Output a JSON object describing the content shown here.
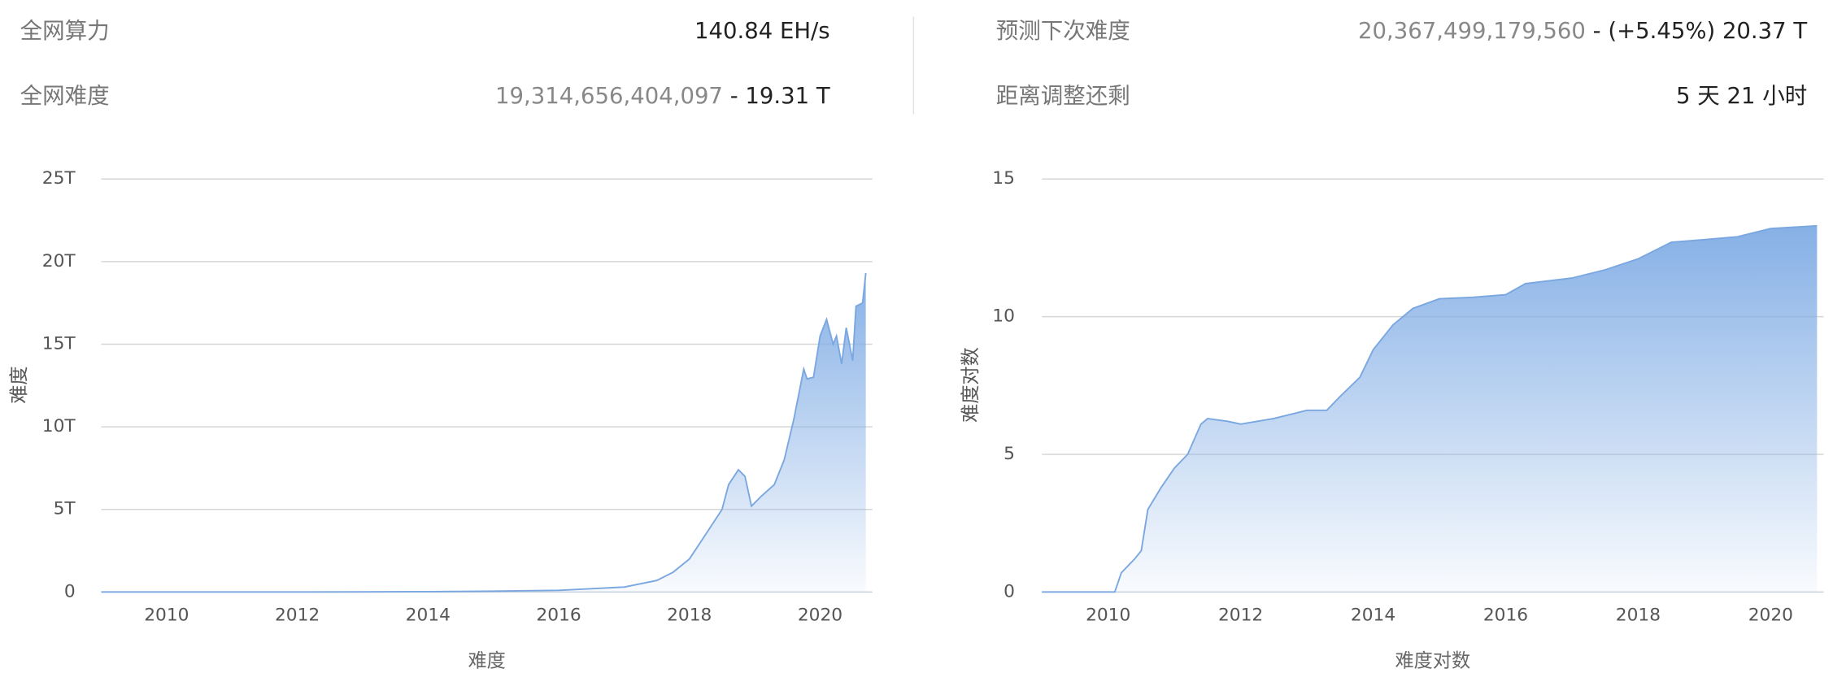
{
  "stats": [
    {
      "label": "全网算力",
      "value": "140.84 EH/s"
    },
    {
      "label": "全网难度",
      "value_gray": "19,314,656,404,097",
      "value": "- 19.31 T"
    },
    {
      "label": "预测下次难度",
      "value_gray": "20,367,499,179,560",
      "value": "- (+5.45%) 20.37 T"
    },
    {
      "label": "距离调整还剩",
      "value": "5 天 21 小时"
    }
  ],
  "chart_data": [
    {
      "type": "area",
      "x_label": "难度",
      "y_label": "难度",
      "color": "#7aa7e0",
      "x": [
        2009.0,
        2010,
        2011,
        2012,
        2013,
        2014,
        2015,
        2016,
        2016.5,
        2017,
        2017.5,
        2017.75,
        2018,
        2018.25,
        2018.5,
        2018.6,
        2018.75,
        2018.85,
        2018.95,
        2019.1,
        2019.3,
        2019.45,
        2019.6,
        2019.75,
        2019.8,
        2019.9,
        2020.0,
        2020.1,
        2020.2,
        2020.25,
        2020.33,
        2020.4,
        2020.5,
        2020.55,
        2020.65,
        2020.7
      ],
      "values": [
        0,
        0,
        0,
        0.002,
        0.005,
        0.02,
        0.05,
        0.1,
        0.2,
        0.3,
        0.7,
        1.2,
        2,
        3.5,
        5,
        6.5,
        7.4,
        7,
        5.2,
        5.8,
        6.5,
        8,
        10.5,
        13.5,
        12.9,
        13,
        15.5,
        16.5,
        15,
        15.5,
        13.8,
        16,
        14,
        17.3,
        17.5,
        19.3
      ],
      "xlim": [
        2009,
        2020.8
      ],
      "xticks": [
        2010,
        2012,
        2014,
        2016,
        2018,
        2020
      ],
      "ylim": [
        0,
        25
      ],
      "yticks": [
        0,
        {
          "value": 5,
          "label": "5T"
        },
        {
          "value": 10,
          "label": "10T"
        },
        {
          "value": 15,
          "label": "15T"
        },
        {
          "value": 20,
          "label": "20T"
        },
        {
          "value": 25,
          "label": "25T"
        }
      ],
      "grid": true
    },
    {
      "type": "area",
      "x_label": "难度对数",
      "y_label": "难度对数",
      "color": "#7aa7e0",
      "x": [
        2009.0,
        2010.1,
        2010.2,
        2010.4,
        2010.5,
        2010.6,
        2010.8,
        2011,
        2011.2,
        2011.4,
        2011.5,
        2011.8,
        2012,
        2012.5,
        2013,
        2013.3,
        2013.5,
        2013.8,
        2014,
        2014.3,
        2014.6,
        2015,
        2015.5,
        2016,
        2016.3,
        2017,
        2017.5,
        2018,
        2018.5,
        2019,
        2019.5,
        2020,
        2020.7
      ],
      "values": [
        0,
        0,
        0.7,
        1.2,
        1.5,
        3,
        3.8,
        4.5,
        5,
        6.1,
        6.3,
        6.2,
        6.1,
        6.3,
        6.6,
        6.6,
        7.1,
        7.8,
        8.8,
        9.7,
        10.3,
        10.65,
        10.7,
        10.8,
        11.2,
        11.4,
        11.7,
        12.1,
        12.7,
        12.8,
        12.9,
        13.2,
        13.3
      ],
      "xlim": [
        2009,
        2020.8
      ],
      "xticks": [
        2010,
        2012,
        2014,
        2016,
        2018,
        2020
      ],
      "ylim": [
        0,
        15
      ],
      "yticks": [
        0,
        5,
        10,
        15
      ],
      "grid": true
    }
  ]
}
